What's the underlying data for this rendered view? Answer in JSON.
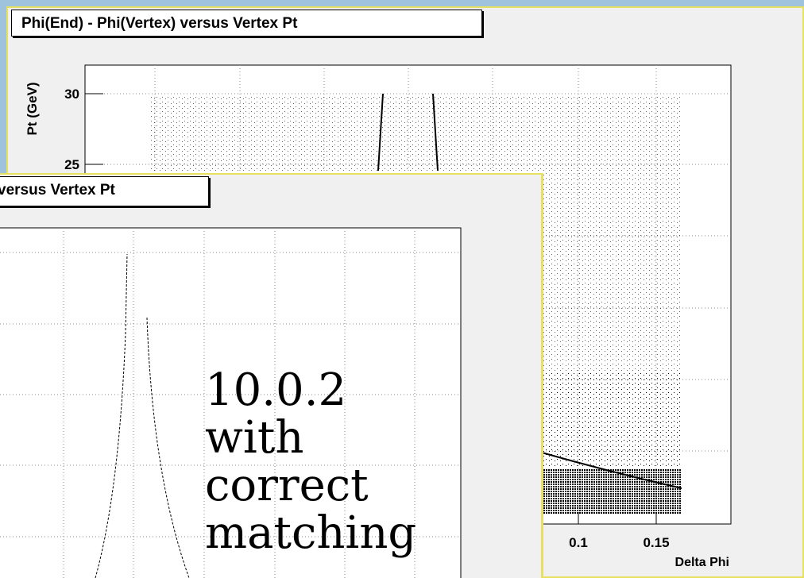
{
  "back_plot": {
    "title": "Phi(End) - Phi(Vertex) versus Vertex Pt",
    "y_label": "Pt (GeV)",
    "y_tick_labels": [
      "30",
      "25"
    ],
    "x_tick_labels": [
      "0.1",
      "0.15"
    ],
    "x_label": "Delta Phi"
  },
  "front_plot": {
    "title": "versus Vertex Pt",
    "annotation": "10.0.2 with correct matching"
  }
}
